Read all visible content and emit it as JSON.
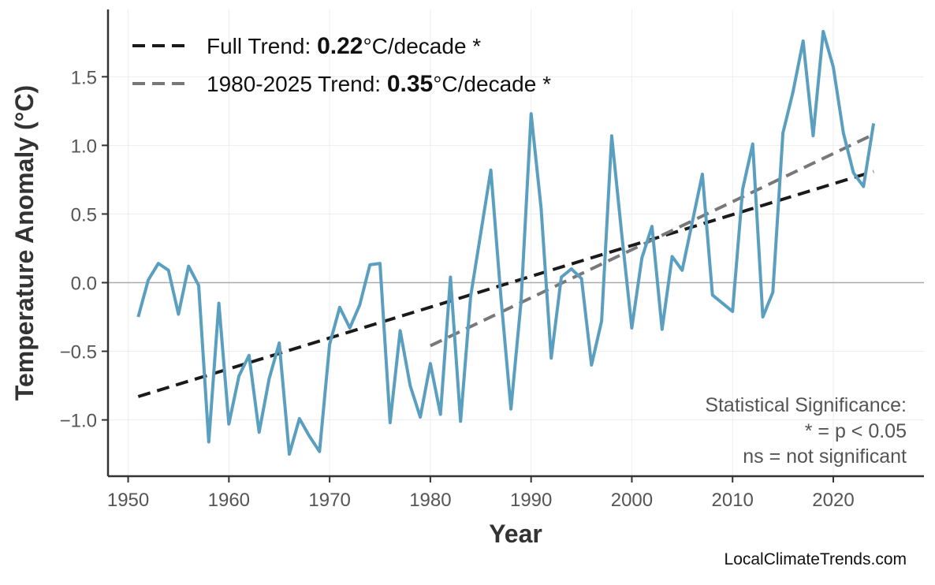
{
  "chart_data": {
    "type": "line",
    "xlabel": "Year",
    "ylabel": "Temperature Anomaly (°C)",
    "xlim": [
      1948,
      2029
    ],
    "ylim": [
      -1.41,
      1.99
    ],
    "xticks": [
      1950,
      1960,
      1970,
      1980,
      1990,
      2000,
      2010,
      2020
    ],
    "yticks": [
      -1.0,
      -0.5,
      0.0,
      0.5,
      1.0,
      1.5
    ],
    "ytick_labels": [
      "−1.0",
      "−0.5",
      "0.0",
      "0.5",
      "1.0",
      "1.5"
    ],
    "grid": true,
    "legend_placement": "top-left",
    "series": {
      "color": "#5a9fc0",
      "x": [
        1951,
        1952,
        1953,
        1954,
        1955,
        1956,
        1957,
        1958,
        1959,
        1960,
        1961,
        1962,
        1963,
        1964,
        1965,
        1966,
        1967,
        1968,
        1969,
        1970,
        1971,
        1972,
        1973,
        1974,
        1975,
        1976,
        1977,
        1978,
        1979,
        1980,
        1981,
        1982,
        1983,
        1984,
        1985,
        1986,
        1987,
        1988,
        1989,
        1990,
        1991,
        1992,
        1993,
        1994,
        1995,
        1996,
        1997,
        1998,
        1999,
        2000,
        2001,
        2002,
        2003,
        2004,
        2005,
        2006,
        2007,
        2008,
        2009,
        2010,
        2011,
        2012,
        2013,
        2014,
        2015,
        2016,
        2017,
        2018,
        2019,
        2020,
        2021,
        2022,
        2023,
        2024
      ],
      "y": [
        -0.25,
        0.02,
        0.14,
        0.09,
        -0.23,
        0.12,
        -0.02,
        -1.16,
        -0.15,
        -1.03,
        -0.68,
        -0.53,
        -1.09,
        -0.7,
        -0.44,
        -1.25,
        -0.99,
        -1.12,
        -1.23,
        -0.45,
        -0.18,
        -0.33,
        -0.16,
        0.13,
        0.14,
        -1.02,
        -0.35,
        -0.75,
        -0.98,
        -0.59,
        -0.96,
        0.04,
        -1.01,
        -0.1,
        0.36,
        0.82,
        -0.1,
        -0.92,
        -0.14,
        1.23,
        0.54,
        -0.55,
        0.04,
        0.1,
        0.03,
        -0.6,
        -0.28,
        1.07,
        0.35,
        -0.33,
        0.18,
        0.41,
        -0.34,
        0.19,
        0.09,
        0.44,
        0.79,
        -0.09,
        -0.15,
        -0.21,
        0.68,
        1.01,
        -0.25,
        -0.07,
        1.09,
        1.39,
        1.76,
        1.07,
        1.83,
        1.57,
        1.09,
        0.8,
        0.7,
        1.16
      ]
    },
    "trends": [
      {
        "name_prefix": "Full Trend: ",
        "value": "0.22",
        "unit": "°C/decade *",
        "color": "#1a1a1a",
        "x": [
          1951,
          2024
        ],
        "y": [
          -0.83,
          0.81
        ]
      },
      {
        "name_prefix": "1980-2025 Trend: ",
        "value": "0.35",
        "unit": "°C/decade *",
        "color": "#787878",
        "x": [
          1980,
          2024
        ],
        "y": [
          -0.46,
          1.08
        ]
      }
    ],
    "annotation": [
      "Statistical Significance:",
      "* = p < 0.05",
      "ns = not significant"
    ]
  },
  "footer": {
    "credit": "LocalClimateTrends.com"
  }
}
